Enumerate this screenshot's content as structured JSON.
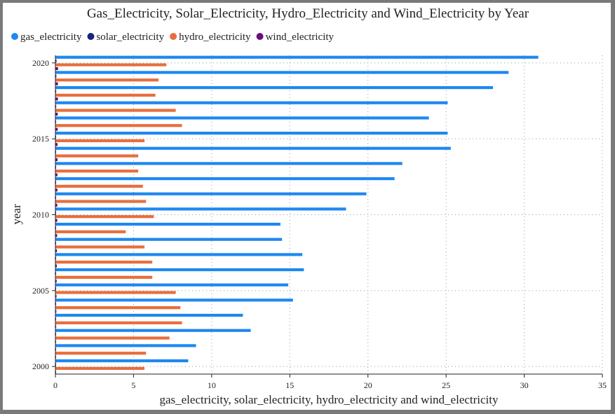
{
  "chart_data": {
    "type": "bar",
    "orientation": "horizontal",
    "title": "Gas_Electricity, Solar_Electricity, Hydro_Electricity and Wind_Electricity by Year",
    "xlabel": "gas_electricity, solar_electricity, hydro_electricity and wind_electricity",
    "ylabel": "year",
    "xlim": [
      0,
      35
    ],
    "xticks": [
      0,
      5,
      10,
      15,
      20,
      25,
      30,
      35
    ],
    "yticks": [
      2000,
      2005,
      2010,
      2015,
      2020
    ],
    "grid": true,
    "legend_position": "top-left",
    "categories": [
      2000,
      2001,
      2002,
      2003,
      2004,
      2005,
      2006,
      2007,
      2008,
      2009,
      2010,
      2011,
      2012,
      2013,
      2014,
      2015,
      2016,
      2017,
      2018,
      2019,
      2020
    ],
    "series": [
      {
        "name": "gas_electricity",
        "color": "#1e88f0",
        "values": [
          8.5,
          9.0,
          12.5,
          12.0,
          15.2,
          14.9,
          15.9,
          15.8,
          14.5,
          14.4,
          18.6,
          19.9,
          21.7,
          22.2,
          25.3,
          25.1,
          23.9,
          25.1,
          28.0,
          29.0,
          30.9
        ]
      },
      {
        "name": "solar_electricity",
        "color": "#1a237e",
        "values": [
          0.01,
          0.01,
          0.01,
          0.01,
          0.01,
          0.01,
          0.01,
          0.01,
          0.01,
          0.01,
          0.01,
          0.02,
          0.02,
          0.02,
          0.03,
          0.03,
          0.04,
          0.05,
          0.05,
          0.06,
          0.07
        ]
      },
      {
        "name": "hydro_electricity",
        "color": "#e86e3c",
        "values": [
          5.7,
          5.8,
          7.3,
          8.1,
          8.0,
          7.7,
          6.2,
          6.2,
          5.7,
          4.5,
          6.3,
          5.8,
          5.6,
          5.3,
          5.3,
          5.7,
          8.1,
          7.7,
          6.4,
          6.6,
          7.1
        ]
      },
      {
        "name": "wind_electricity",
        "color": "#6a0f7a",
        "values": [
          0.02,
          0.03,
          0.04,
          0.05,
          0.06,
          0.07,
          0.08,
          0.09,
          0.1,
          0.11,
          0.12,
          0.12,
          0.13,
          0.13,
          0.14,
          0.14,
          0.15,
          0.15,
          0.16,
          0.16,
          0.17
        ]
      }
    ]
  }
}
